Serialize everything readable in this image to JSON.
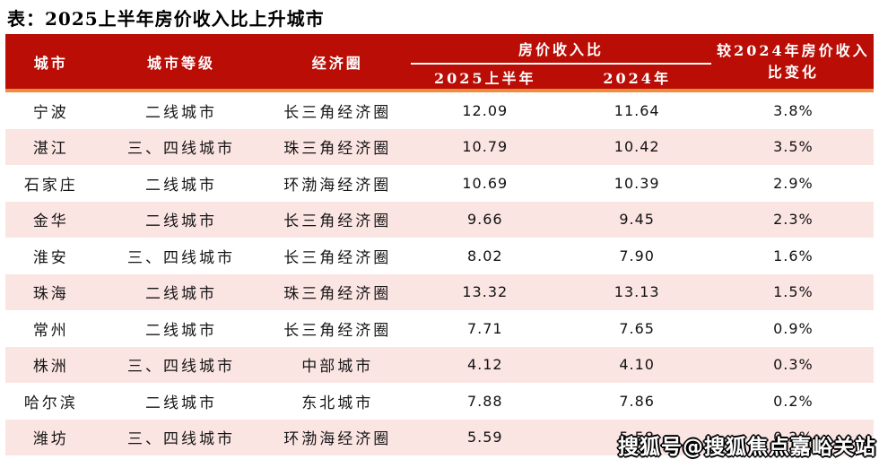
{
  "title": "表：2025上半年房价收入比上升城市",
  "header": {
    "city": "城市",
    "tier": "城市等级",
    "circle": "经济圈",
    "ratio_group": "房价收入比",
    "sub_2025": "2025上半年",
    "sub_2024": "2024年",
    "change_line1": "较2024年房价收入",
    "change_line2": "比变化"
  },
  "watermark": "搜狐号@搜狐焦点嘉峪关站",
  "colors": {
    "header_bg": "#B90D05",
    "accent_line": "#EF8C3D",
    "row_alt": "#FBE5E3",
    "watermark_fill": "#FFFFFF",
    "watermark_outline": "#000000"
  },
  "chart_data": {
    "type": "table",
    "title": "表：2025上半年房价收入比上升城市",
    "columns": [
      "城市",
      "城市等级",
      "经济圈",
      "房价收入比 2025上半年",
      "房价收入比 2024年",
      "较2024年房价收入比变化"
    ],
    "rows": [
      {
        "city": "宁波",
        "tier": "二线城市",
        "circle": "长三角经济圈",
        "ratio_2025h1": "12.09",
        "ratio_2024": "11.64",
        "change": "3.8%"
      },
      {
        "city": "湛江",
        "tier": "三、四线城市",
        "circle": "珠三角经济圈",
        "ratio_2025h1": "10.79",
        "ratio_2024": "10.42",
        "change": "3.5%"
      },
      {
        "city": "石家庄",
        "tier": "二线城市",
        "circle": "环渤海经济圈",
        "ratio_2025h1": "10.69",
        "ratio_2024": "10.39",
        "change": "2.9%"
      },
      {
        "city": "金华",
        "tier": "二线城市",
        "circle": "长三角经济圈",
        "ratio_2025h1": "9.66",
        "ratio_2024": "9.45",
        "change": "2.3%"
      },
      {
        "city": "淮安",
        "tier": "三、四线城市",
        "circle": "长三角经济圈",
        "ratio_2025h1": "8.02",
        "ratio_2024": "7.90",
        "change": "1.6%"
      },
      {
        "city": "珠海",
        "tier": "二线城市",
        "circle": "珠三角经济圈",
        "ratio_2025h1": "13.32",
        "ratio_2024": "13.13",
        "change": "1.5%"
      },
      {
        "city": "常州",
        "tier": "二线城市",
        "circle": "长三角经济圈",
        "ratio_2025h1": "7.71",
        "ratio_2024": "7.65",
        "change": "0.9%"
      },
      {
        "city": "株洲",
        "tier": "三、四线城市",
        "circle": "中部城市",
        "ratio_2025h1": "4.12",
        "ratio_2024": "4.10",
        "change": "0.3%"
      },
      {
        "city": "哈尔滨",
        "tier": "二线城市",
        "circle": "东北城市",
        "ratio_2025h1": "7.88",
        "ratio_2024": "7.86",
        "change": "0.2%"
      },
      {
        "city": "潍坊",
        "tier": "三、四线城市",
        "circle": "环渤海经济圈",
        "ratio_2025h1": "5.59",
        "ratio_2024": "5.58",
        "change": "0.2%"
      }
    ]
  }
}
